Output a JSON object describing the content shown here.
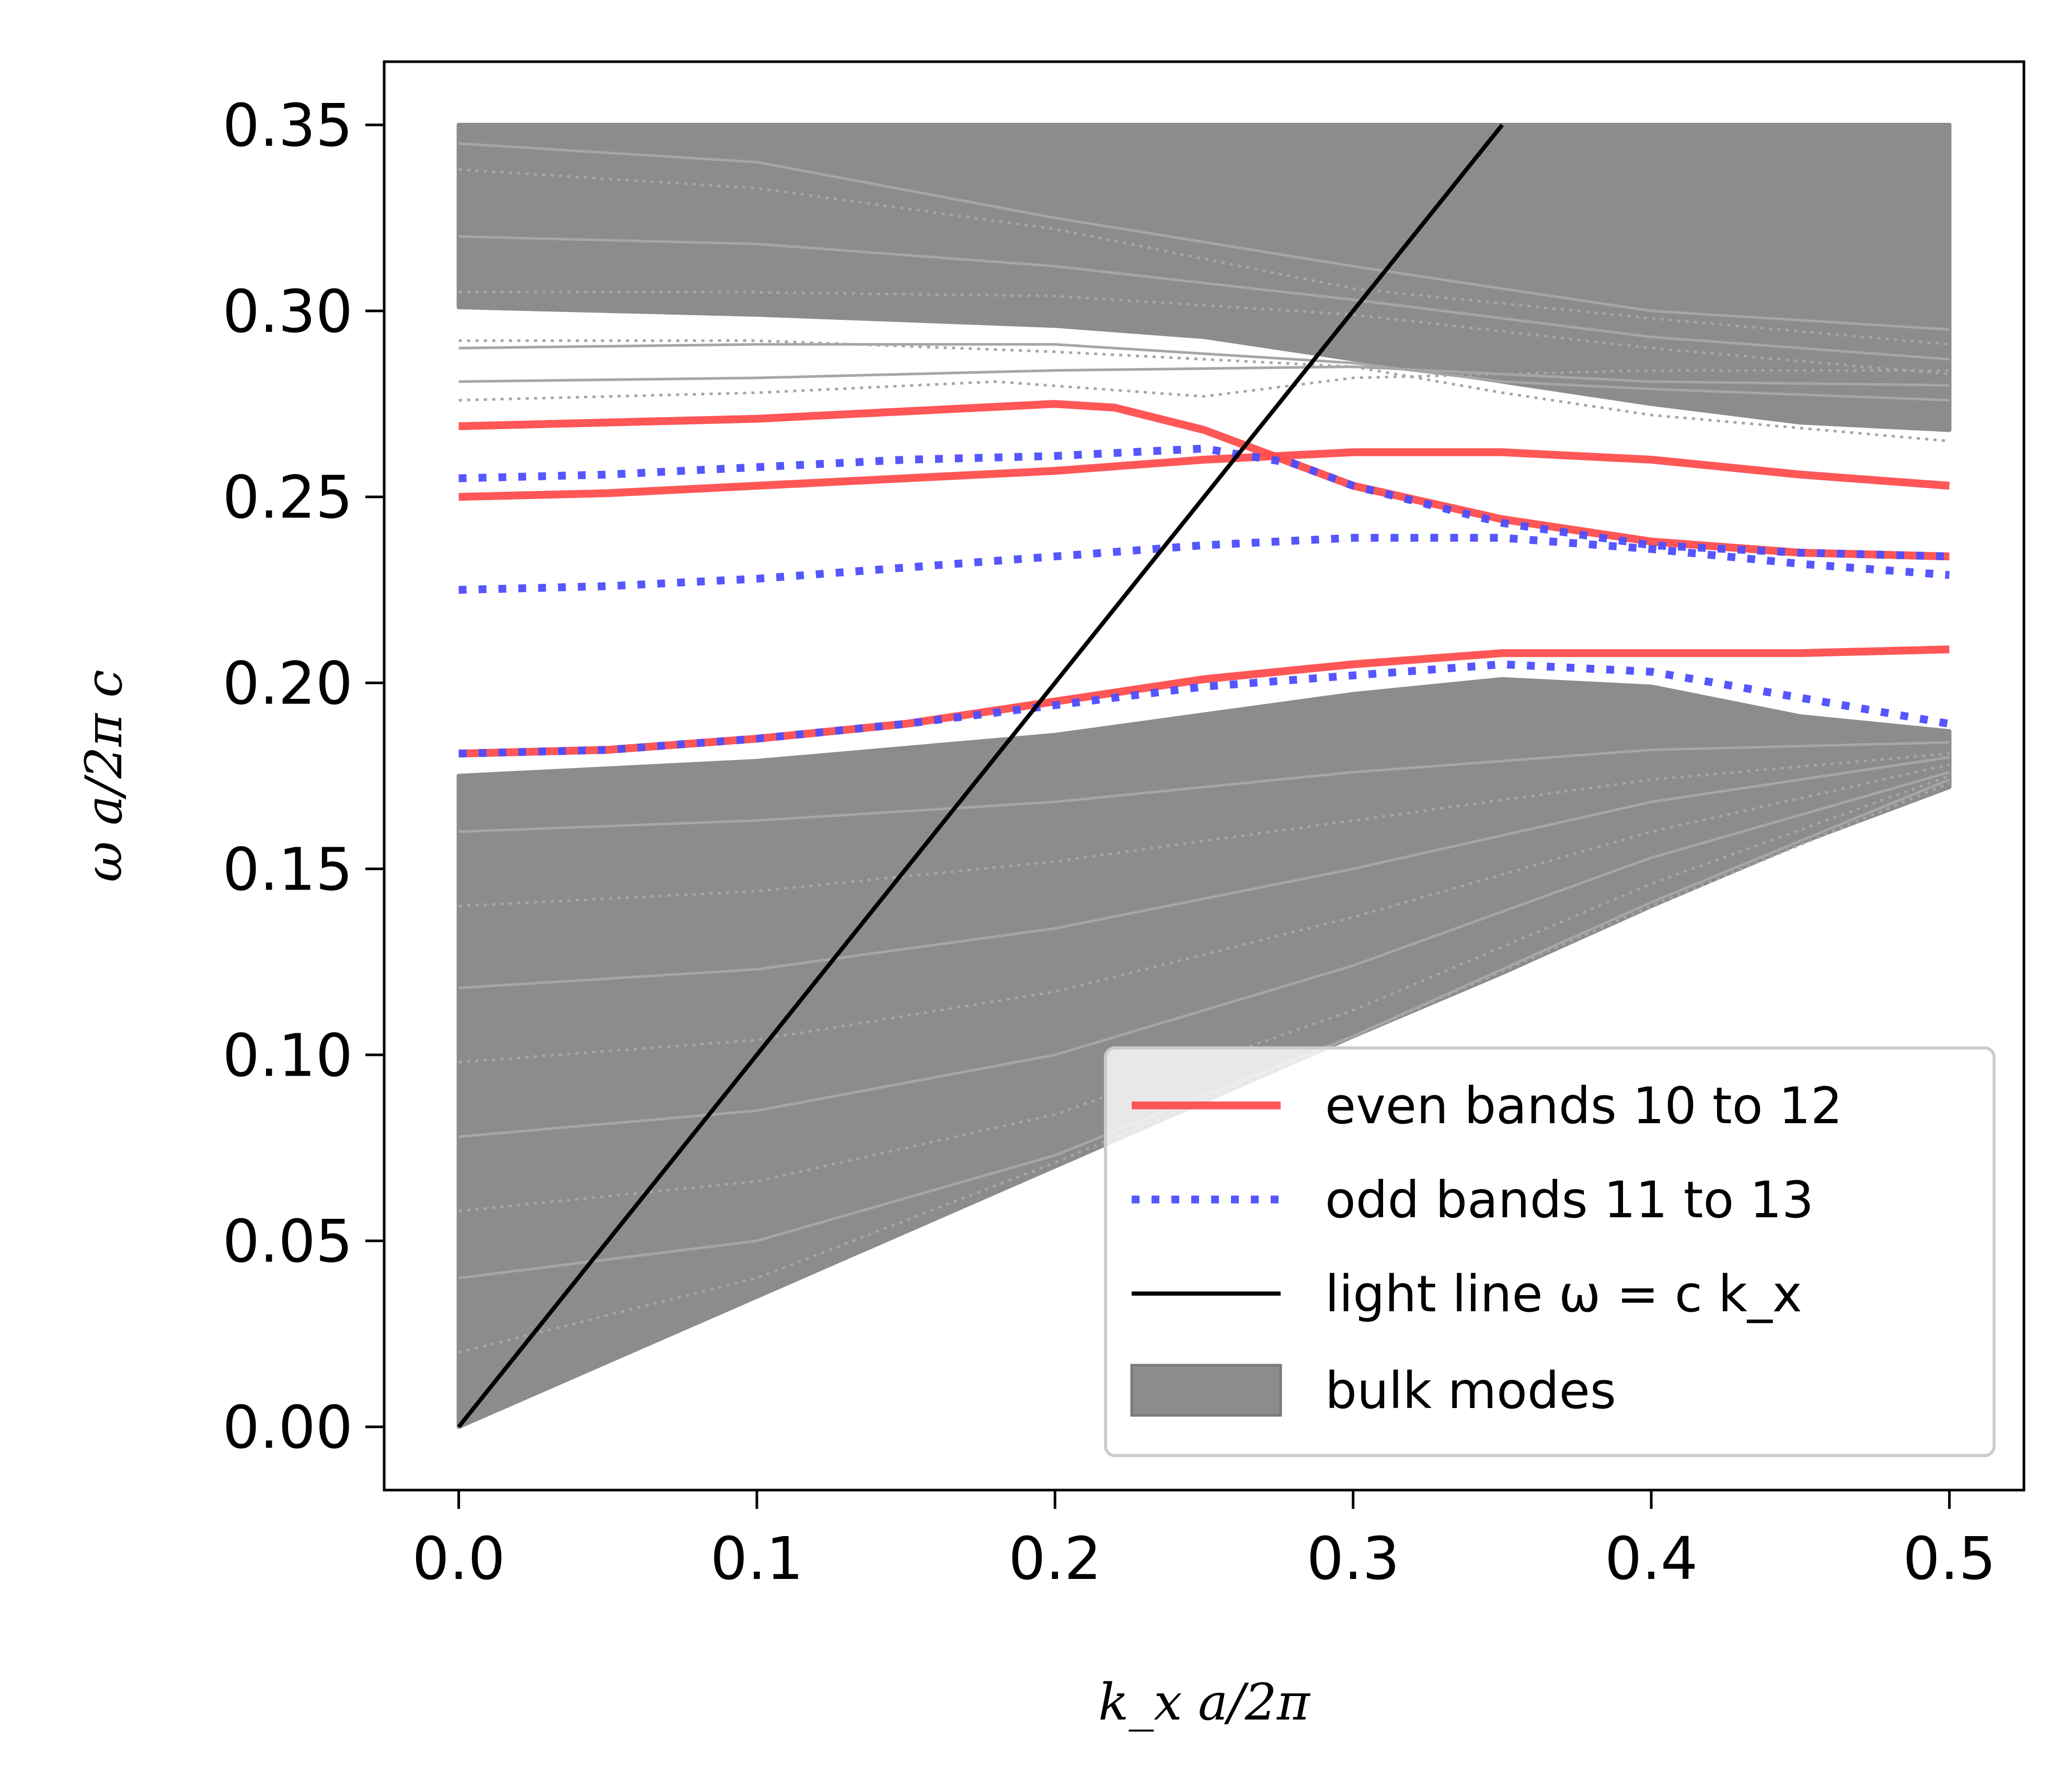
{
  "chart_data": {
    "type": "line",
    "xlabel": "k_x a/2π",
    "ylabel": "ω a/2π c",
    "xlim": [
      -0.025,
      0.525
    ],
    "ylim": [
      -0.017,
      0.367
    ],
    "xticks": [
      "0.0",
      "0.1",
      "0.2",
      "0.3",
      "0.4",
      "0.5"
    ],
    "xtick_values": [
      0.0,
      0.1,
      0.2,
      0.3,
      0.4,
      0.5
    ],
    "yticks": [
      "0.00",
      "0.05",
      "0.10",
      "0.15",
      "0.20",
      "0.25",
      "0.30",
      "0.35"
    ],
    "ytick_values": [
      0.0,
      0.05,
      0.1,
      0.15,
      0.2,
      0.25,
      0.3,
      0.35
    ],
    "grid": false,
    "legend_position": "lower-right",
    "colors": {
      "even": "#ff4d4d",
      "odd": "#4d4dff",
      "light": "#000000",
      "bulk": "#8c8c8c",
      "bulk_lines": "#a6a6a6"
    },
    "legend": [
      {
        "label": "even bands 10 to 12",
        "style": "solid-red"
      },
      {
        "label": "odd bands 11 to 13",
        "style": "dotted-blue"
      },
      {
        "label": "light line ω = c k_x",
        "style": "solid-black"
      },
      {
        "label": "bulk modes",
        "style": "gray-patch"
      }
    ],
    "bulk_regions": [
      {
        "name": "lower bulk",
        "x": [
          0.0,
          0.1,
          0.2,
          0.3,
          0.35,
          0.4,
          0.45,
          0.5
        ],
        "upper": [
          0.175,
          0.179,
          0.186,
          0.197,
          0.201,
          0.199,
          0.191,
          0.187
        ],
        "lower": [
          0.0,
          0.035,
          0.07,
          0.105,
          0.122,
          0.14,
          0.157,
          0.172
        ]
      },
      {
        "name": "upper bulk",
        "x": [
          0.0,
          0.1,
          0.2,
          0.25,
          0.3,
          0.35,
          0.4,
          0.45,
          0.5
        ],
        "upper": [
          0.35,
          0.35,
          0.35,
          0.35,
          0.35,
          0.35,
          0.35,
          0.35,
          0.35
        ],
        "lower": [
          0.301,
          0.299,
          0.296,
          0.293,
          0.287,
          0.281,
          0.275,
          0.27,
          0.268
        ]
      }
    ],
    "series": [
      {
        "name": "even bands 10 to 12",
        "style": "solid-red",
        "x": [
          0.0,
          0.05,
          0.1,
          0.15,
          0.2,
          0.25,
          0.3,
          0.35,
          0.4,
          0.45,
          0.5
        ],
        "y": [
          0.181,
          0.182,
          0.185,
          0.189,
          0.195,
          0.201,
          0.205,
          0.208,
          0.208,
          0.208,
          0.209
        ]
      },
      {
        "name": "even bands 10 to 12",
        "style": "solid-red",
        "x": [
          0.0,
          0.05,
          0.1,
          0.15,
          0.2,
          0.25,
          0.3,
          0.35,
          0.4,
          0.45,
          0.5
        ],
        "y": [
          0.25,
          0.251,
          0.253,
          0.255,
          0.257,
          0.26,
          0.262,
          0.262,
          0.26,
          0.256,
          0.253
        ]
      },
      {
        "name": "even bands 10 to 12",
        "style": "solid-red",
        "x": [
          0.0,
          0.05,
          0.1,
          0.15,
          0.2,
          0.22,
          0.25,
          0.28,
          0.3,
          0.35,
          0.4,
          0.45,
          0.5
        ],
        "y": [
          0.269,
          0.27,
          0.271,
          0.273,
          0.275,
          0.274,
          0.268,
          0.259,
          0.253,
          0.244,
          0.238,
          0.235,
          0.234
        ]
      },
      {
        "name": "odd bands 11 to 13",
        "style": "dotted-blue",
        "x": [
          0.0,
          0.05,
          0.1,
          0.15,
          0.2,
          0.25,
          0.3,
          0.35,
          0.4,
          0.45,
          0.5
        ],
        "y": [
          0.181,
          0.182,
          0.185,
          0.189,
          0.194,
          0.199,
          0.202,
          0.205,
          0.203,
          0.196,
          0.189
        ]
      },
      {
        "name": "odd bands 11 to 13",
        "style": "dotted-blue",
        "x": [
          0.0,
          0.05,
          0.1,
          0.15,
          0.2,
          0.25,
          0.3,
          0.35,
          0.4,
          0.45,
          0.5
        ],
        "y": [
          0.225,
          0.226,
          0.228,
          0.231,
          0.234,
          0.237,
          0.239,
          0.239,
          0.236,
          0.232,
          0.229
        ]
      },
      {
        "name": "odd bands 11 to 13",
        "style": "dotted-blue",
        "x": [
          0.0,
          0.05,
          0.1,
          0.15,
          0.2,
          0.25,
          0.28,
          0.3,
          0.35,
          0.4,
          0.45,
          0.5
        ],
        "y": [
          0.255,
          0.256,
          0.258,
          0.26,
          0.261,
          0.263,
          0.259,
          0.253,
          0.243,
          0.237,
          0.235,
          0.234
        ]
      },
      {
        "name": "light line ω = c k_x",
        "style": "solid-black",
        "x": [
          0.0,
          0.35
        ],
        "y": [
          0.0,
          0.35
        ]
      }
    ],
    "bulk_band_lines": [
      {
        "x": [
          0.0,
          0.1,
          0.2,
          0.3,
          0.35,
          0.4,
          0.5
        ],
        "y": [
          0.29,
          0.291,
          0.291,
          0.286,
          0.281,
          0.279,
          0.276
        ],
        "dotted": false
      },
      {
        "x": [
          0.0,
          0.1,
          0.2,
          0.3,
          0.35,
          0.4,
          0.5
        ],
        "y": [
          0.292,
          0.292,
          0.289,
          0.285,
          0.278,
          0.272,
          0.265
        ],
        "dotted": true
      },
      {
        "x": [
          0.0,
          0.1,
          0.2,
          0.3,
          0.35,
          0.4,
          0.5
        ],
        "y": [
          0.281,
          0.282,
          0.284,
          0.285,
          0.283,
          0.281,
          0.28
        ],
        "dotted": false
      },
      {
        "x": [
          0.0,
          0.1,
          0.18,
          0.25,
          0.3,
          0.35,
          0.4,
          0.5
        ],
        "y": [
          0.276,
          0.278,
          0.281,
          0.277,
          0.282,
          0.283,
          0.284,
          0.284
        ],
        "dotted": true
      },
      {
        "x": [
          0.0,
          0.1,
          0.2,
          0.3,
          0.4,
          0.5
        ],
        "y": [
          0.345,
          0.34,
          0.325,
          0.312,
          0.3,
          0.295
        ],
        "dotted": false
      },
      {
        "x": [
          0.0,
          0.1,
          0.2,
          0.3,
          0.4,
          0.5
        ],
        "y": [
          0.338,
          0.333,
          0.322,
          0.306,
          0.298,
          0.291
        ],
        "dotted": true
      },
      {
        "x": [
          0.0,
          0.1,
          0.2,
          0.3,
          0.4,
          0.5
        ],
        "y": [
          0.32,
          0.318,
          0.312,
          0.303,
          0.293,
          0.287
        ],
        "dotted": false
      },
      {
        "x": [
          0.0,
          0.1,
          0.2,
          0.3,
          0.4,
          0.5
        ],
        "y": [
          0.305,
          0.305,
          0.304,
          0.299,
          0.29,
          0.283
        ],
        "dotted": true
      },
      {
        "x": [
          0.0,
          0.1,
          0.2,
          0.3,
          0.4,
          0.5
        ],
        "y": [
          0.16,
          0.163,
          0.168,
          0.176,
          0.182,
          0.184
        ],
        "dotted": false
      },
      {
        "x": [
          0.0,
          0.1,
          0.2,
          0.3,
          0.4,
          0.5
        ],
        "y": [
          0.14,
          0.144,
          0.152,
          0.163,
          0.174,
          0.181
        ],
        "dotted": true
      },
      {
        "x": [
          0.0,
          0.1,
          0.2,
          0.3,
          0.4,
          0.5
        ],
        "y": [
          0.118,
          0.123,
          0.134,
          0.15,
          0.168,
          0.18
        ],
        "dotted": false
      },
      {
        "x": [
          0.0,
          0.1,
          0.2,
          0.3,
          0.4,
          0.5
        ],
        "y": [
          0.098,
          0.104,
          0.117,
          0.137,
          0.16,
          0.178
        ],
        "dotted": true
      },
      {
        "x": [
          0.0,
          0.1,
          0.2,
          0.3,
          0.4,
          0.5
        ],
        "y": [
          0.078,
          0.085,
          0.1,
          0.124,
          0.153,
          0.176
        ],
        "dotted": false
      },
      {
        "x": [
          0.0,
          0.1,
          0.2,
          0.3,
          0.4,
          0.5
        ],
        "y": [
          0.058,
          0.066,
          0.084,
          0.112,
          0.146,
          0.175
        ],
        "dotted": true
      },
      {
        "x": [
          0.0,
          0.1,
          0.2,
          0.3,
          0.4,
          0.5
        ],
        "y": [
          0.04,
          0.05,
          0.073,
          0.105,
          0.141,
          0.174
        ],
        "dotted": false
      },
      {
        "x": [
          0.0,
          0.1,
          0.2,
          0.3,
          0.4,
          0.5
        ],
        "y": [
          0.02,
          0.04,
          0.071,
          0.105,
          0.14,
          0.173
        ],
        "dotted": true
      }
    ]
  }
}
